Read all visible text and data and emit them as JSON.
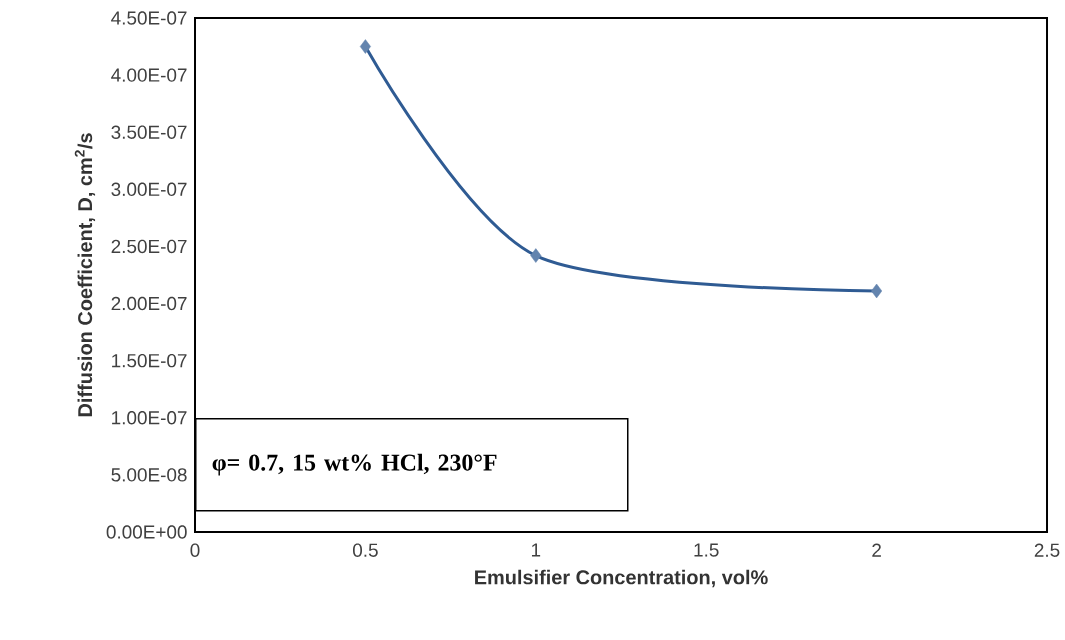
{
  "chart_data": {
    "type": "line",
    "xlabel": "Emulsifier Concentration, vol%",
    "ylabel": "Diffusion Coefficient, D, cm$^{2}$/s",
    "x": [
      0.5,
      1,
      2
    ],
    "series": [
      {
        "color": "#2f5b93",
        "values": [
          4.25e-07,
          2.42e-07,
          2.11e-07
        ]
      }
    ],
    "marker": "diamond",
    "xlim": [
      0,
      2.5
    ],
    "xticks": [
      0,
      0.5,
      1,
      1.5,
      2,
      2.5
    ],
    "ylim": [
      0,
      4.5e-07
    ],
    "yticks": [
      {
        "value": 0,
        "label": "0.00E+00"
      },
      {
        "value": 5e-08,
        "label": "5.00E-08"
      },
      {
        "value": 1e-07,
        "label": "1.00E-07"
      },
      {
        "value": 1.5e-07,
        "label": "1.50E-07"
      },
      {
        "value": 2e-07,
        "label": "2.00E-07"
      },
      {
        "value": 2.5e-07,
        "label": "2.50E-07"
      },
      {
        "value": 3e-07,
        "label": "3.00E-07"
      },
      {
        "value": 3.5e-07,
        "label": "3.50E-07"
      },
      {
        "value": 4e-07,
        "label": "4.00E-07"
      },
      {
        "value": 4.5e-07,
        "label": "4.50E-07"
      }
    ],
    "annotations": [
      "φ= 0.7, 15 wt% HCl, 230°F"
    ],
    "grid": false
  }
}
